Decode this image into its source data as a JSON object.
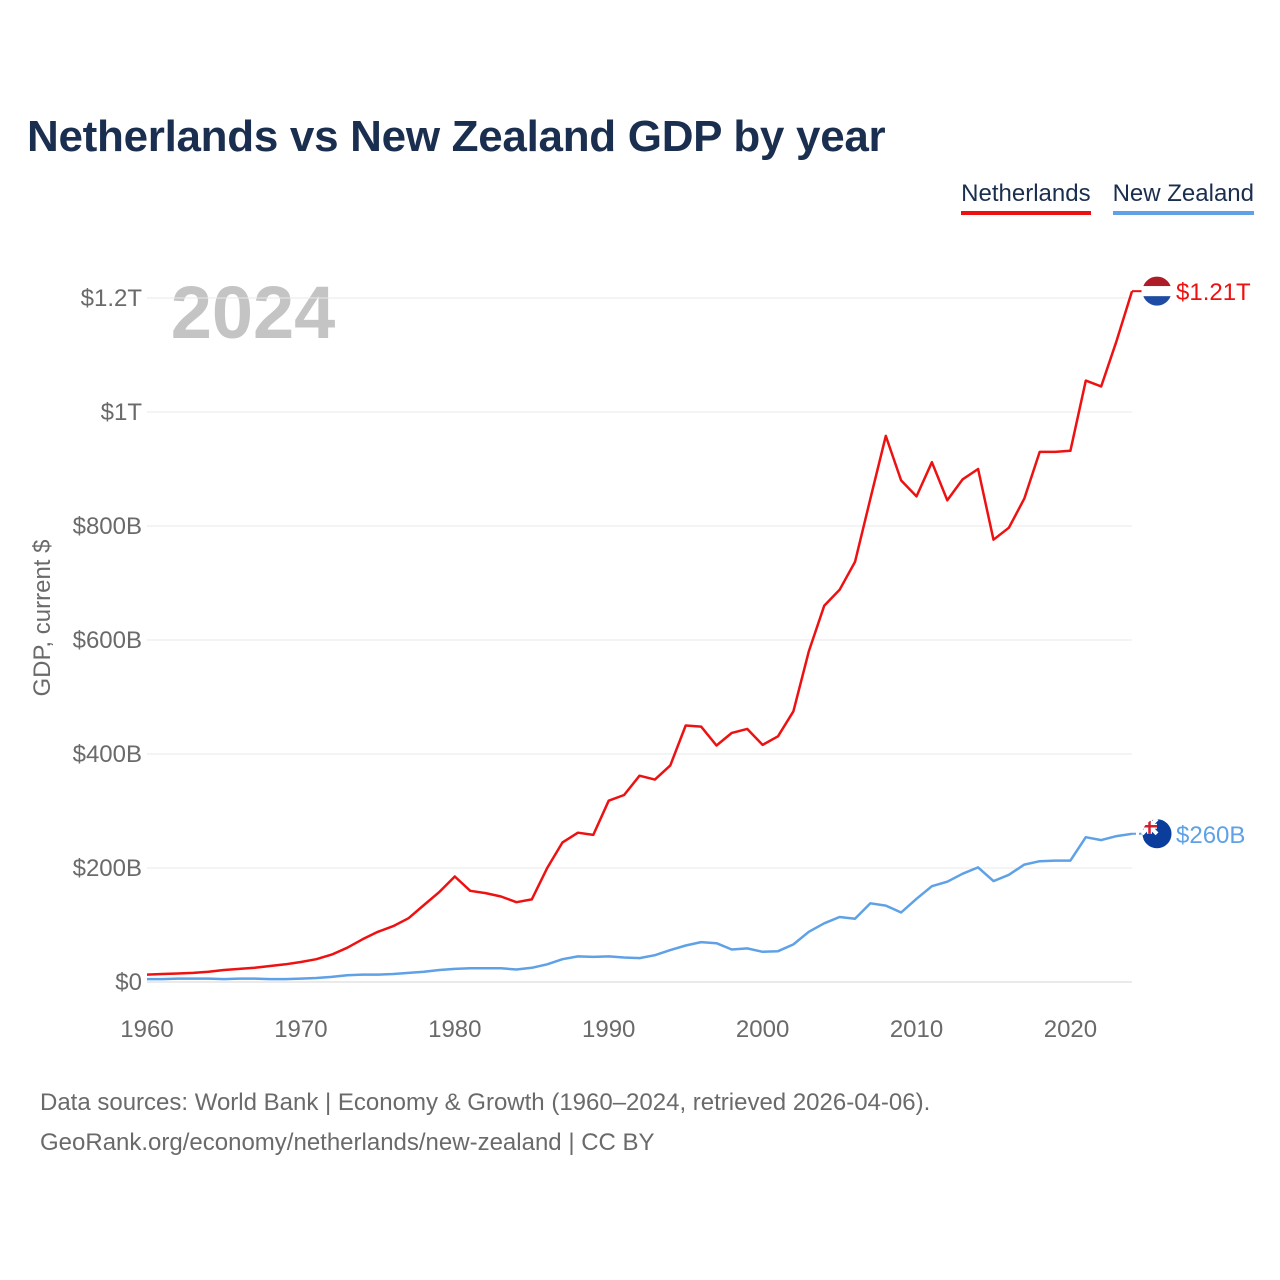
{
  "header": {
    "title": "Netherlands vs New Zealand GDP by year"
  },
  "legend": [
    {
      "label": "Netherlands",
      "color": "#ee1111"
    },
    {
      "label": "New Zealand",
      "color": "#5ea1e6"
    }
  ],
  "year_watermark": "2024",
  "footer": {
    "sources": "Data sources: World Bank | Economy & Growth (1960–2024, retrieved 2026-04-06).",
    "credit": "GeoRank.org/economy/netherlands/new-zealand | CC BY"
  },
  "chart_data": {
    "type": "line",
    "ylabel": "GDP, current $",
    "xlabel": "",
    "ylim": [
      0,
      1200
    ],
    "xlim": [
      1960,
      2024
    ],
    "grid": true,
    "y_ticks": [
      {
        "value": 0,
        "label": "$0"
      },
      {
        "value": 200,
        "label": "$200B"
      },
      {
        "value": 400,
        "label": "$400B"
      },
      {
        "value": 600,
        "label": "$600B"
      },
      {
        "value": 800,
        "label": "$800B"
      },
      {
        "value": 1000,
        "label": "$1T"
      },
      {
        "value": 1200,
        "label": "$1.2T"
      }
    ],
    "x_ticks": [
      {
        "value": 1960,
        "label": "1960"
      },
      {
        "value": 1970,
        "label": "1970"
      },
      {
        "value": 1980,
        "label": "1980"
      },
      {
        "value": 1990,
        "label": "1990"
      },
      {
        "value": 2000,
        "label": "2000"
      },
      {
        "value": 2010,
        "label": "2010"
      },
      {
        "value": 2020,
        "label": "2020"
      }
    ],
    "x": [
      1960,
      1961,
      1962,
      1963,
      1964,
      1965,
      1966,
      1967,
      1968,
      1969,
      1970,
      1971,
      1972,
      1973,
      1974,
      1975,
      1976,
      1977,
      1978,
      1979,
      1980,
      1981,
      1982,
      1983,
      1984,
      1985,
      1986,
      1987,
      1988,
      1989,
      1990,
      1991,
      1992,
      1993,
      1994,
      1995,
      1996,
      1997,
      1998,
      1999,
      2000,
      2001,
      2002,
      2003,
      2004,
      2005,
      2006,
      2007,
      2008,
      2009,
      2010,
      2011,
      2012,
      2013,
      2014,
      2015,
      2016,
      2017,
      2018,
      2019,
      2020,
      2021,
      2022,
      2023,
      2024
    ],
    "series": [
      {
        "name": "Netherlands",
        "color": "#ee1111",
        "end_label": "$1.21T",
        "flag": "netherlands-flag-icon",
        "values": [
          13,
          14,
          15,
          16,
          18,
          21,
          23,
          25,
          28,
          31,
          35,
          40,
          48,
          60,
          75,
          88,
          98,
          112,
          135,
          158,
          185,
          160,
          156,
          150,
          140,
          145,
          200,
          245,
          262,
          258,
          318,
          328,
          362,
          355,
          380,
          450,
          448,
          415,
          437,
          444,
          416,
          431,
          475,
          580,
          660,
          688,
          737,
          848,
          958,
          880,
          852,
          912,
          845,
          882,
          900,
          776,
          797,
          848,
          930,
          930,
          932,
          1055,
          1045,
          1125,
          1212
        ]
      },
      {
        "name": "New Zealand",
        "color": "#5ea1e6",
        "end_label": "$260B",
        "flag": "new-zealand-flag-icon",
        "values": [
          5,
          5,
          6,
          6,
          6,
          5,
          6,
          6,
          5,
          5,
          6,
          7,
          9,
          12,
          13,
          13,
          14,
          16,
          18,
          21,
          23,
          24,
          24,
          24,
          22,
          25,
          31,
          40,
          45,
          44,
          45,
          43,
          42,
          47,
          56,
          64,
          70,
          68,
          57,
          59,
          53,
          54,
          66,
          88,
          103,
          114,
          111,
          138,
          134,
          122,
          146,
          168,
          176,
          190,
          201,
          177,
          188,
          206,
          212,
          213,
          213,
          254,
          249,
          256,
          260
        ]
      }
    ]
  }
}
